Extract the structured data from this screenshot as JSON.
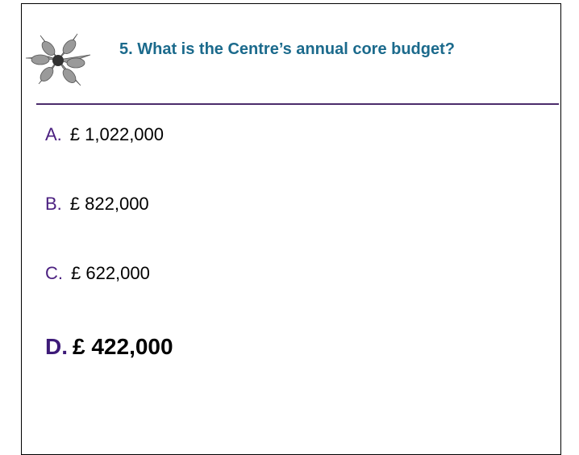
{
  "header": {
    "title": "5. What is the Centre’s annual core budget?"
  },
  "options": [
    {
      "letter": "A.",
      "text": "£ 1,022,000"
    },
    {
      "letter": "B.",
      "text": "£ 822,000"
    },
    {
      "letter": "C.",
      "text": "£ 622,000"
    },
    {
      "letter": "D.",
      "text": "£ 422,000"
    }
  ]
}
